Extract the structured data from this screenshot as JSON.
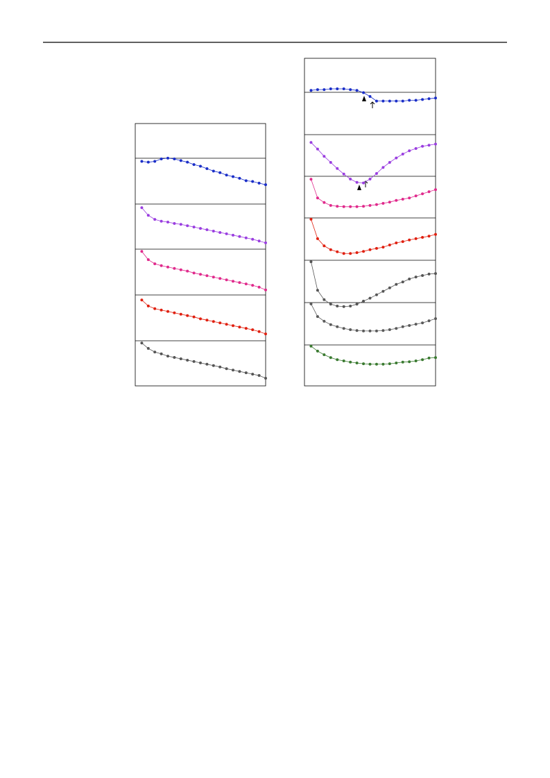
{
  "chart_data": [
    {
      "type": "line",
      "xlim": [
        0,
        1
      ],
      "ylim": [
        0,
        1
      ],
      "x": [
        0.05,
        0.1,
        0.15,
        0.2,
        0.25,
        0.3,
        0.35,
        0.4,
        0.45,
        0.5,
        0.55,
        0.6,
        0.65,
        0.7,
        0.75,
        0.8,
        0.85,
        0.9,
        0.95,
        1.0
      ],
      "series": [
        {
          "color": "#1a2ec8",
          "values": [
            0.53,
            0.52,
            0.53,
            0.56,
            0.57,
            0.56,
            0.54,
            0.52,
            0.49,
            0.47,
            0.44,
            0.41,
            0.39,
            0.36,
            0.34,
            0.32,
            0.29,
            0.28,
            0.26,
            0.24
          ]
        },
        {
          "color": "#9a3ee0",
          "values": [
            0.92,
            0.75,
            0.66,
            0.62,
            0.6,
            0.57,
            0.55,
            0.52,
            0.49,
            0.46,
            0.43,
            0.4,
            0.37,
            0.34,
            0.31,
            0.28,
            0.25,
            0.22,
            0.18,
            0.14
          ]
        },
        {
          "color": "#e02a8c",
          "values": [
            0.95,
            0.77,
            0.68,
            0.64,
            0.61,
            0.58,
            0.55,
            0.52,
            0.48,
            0.45,
            0.42,
            0.39,
            0.36,
            0.33,
            0.3,
            0.27,
            0.24,
            0.21,
            0.17,
            0.11
          ]
        },
        {
          "color": "#e02010",
          "values": [
            0.89,
            0.76,
            0.7,
            0.67,
            0.64,
            0.61,
            0.58,
            0.55,
            0.52,
            0.48,
            0.45,
            0.42,
            0.39,
            0.36,
            0.33,
            0.3,
            0.27,
            0.24,
            0.2,
            0.15
          ]
        },
        {
          "color": "#555555",
          "values": [
            0.95,
            0.83,
            0.75,
            0.71,
            0.66,
            0.63,
            0.6,
            0.57,
            0.54,
            0.51,
            0.48,
            0.45,
            0.42,
            0.38,
            0.35,
            0.32,
            0.29,
            0.26,
            0.23,
            0.17
          ]
        }
      ]
    },
    {
      "type": "line",
      "xlim": [
        0,
        1
      ],
      "ylim": [
        0,
        1
      ],
      "x": [
        0.05,
        0.1,
        0.15,
        0.2,
        0.25,
        0.3,
        0.35,
        0.4,
        0.45,
        0.5,
        0.55,
        0.6,
        0.65,
        0.7,
        0.75,
        0.8,
        0.85,
        0.9,
        0.95,
        1.0
      ],
      "series": [
        {
          "color": "#1a2ec8",
          "values": [
            0.58,
            0.59,
            0.59,
            0.6,
            0.6,
            0.6,
            0.59,
            0.58,
            0.55,
            0.5,
            0.44,
            0.44,
            0.44,
            0.44,
            0.44,
            0.45,
            0.45,
            0.46,
            0.47,
            0.48
          ]
        },
        {
          "color": "#9a3ee0",
          "values": [
            0.86,
            0.74,
            0.61,
            0.5,
            0.39,
            0.29,
            0.2,
            0.14,
            0.13,
            0.2,
            0.3,
            0.41,
            0.5,
            0.58,
            0.65,
            0.71,
            0.75,
            0.79,
            0.81,
            0.83
          ]
        },
        {
          "color": "#e02a8c",
          "values": [
            0.93,
            0.48,
            0.37,
            0.3,
            0.28,
            0.27,
            0.27,
            0.27,
            0.28,
            0.3,
            0.32,
            0.35,
            0.38,
            0.42,
            0.45,
            0.48,
            0.53,
            0.58,
            0.63,
            0.68
          ]
        },
        {
          "color": "#e02010",
          "values": [
            0.97,
            0.51,
            0.34,
            0.25,
            0.2,
            0.16,
            0.16,
            0.18,
            0.21,
            0.25,
            0.28,
            0.31,
            0.36,
            0.41,
            0.44,
            0.48,
            0.51,
            0.54,
            0.57,
            0.61
          ]
        },
        {
          "color": "#555555",
          "values": [
            0.97,
            0.39,
            0.2,
            0.11,
            0.07,
            0.06,
            0.07,
            0.11,
            0.17,
            0.23,
            0.3,
            0.37,
            0.44,
            0.51,
            0.56,
            0.62,
            0.66,
            0.69,
            0.72,
            0.73
          ]
        },
        {
          "color": "#5a5a5a",
          "values": [
            0.97,
            0.67,
            0.56,
            0.48,
            0.43,
            0.39,
            0.36,
            0.34,
            0.33,
            0.33,
            0.33,
            0.34,
            0.36,
            0.39,
            0.43,
            0.46,
            0.49,
            0.52,
            0.57,
            0.62
          ]
        },
        {
          "color": "#3a7a30",
          "values": [
            0.97,
            0.85,
            0.76,
            0.69,
            0.64,
            0.61,
            0.58,
            0.56,
            0.54,
            0.53,
            0.53,
            0.53,
            0.54,
            0.56,
            0.58,
            0.59,
            0.61,
            0.64,
            0.68,
            0.69
          ]
        }
      ]
    }
  ]
}
